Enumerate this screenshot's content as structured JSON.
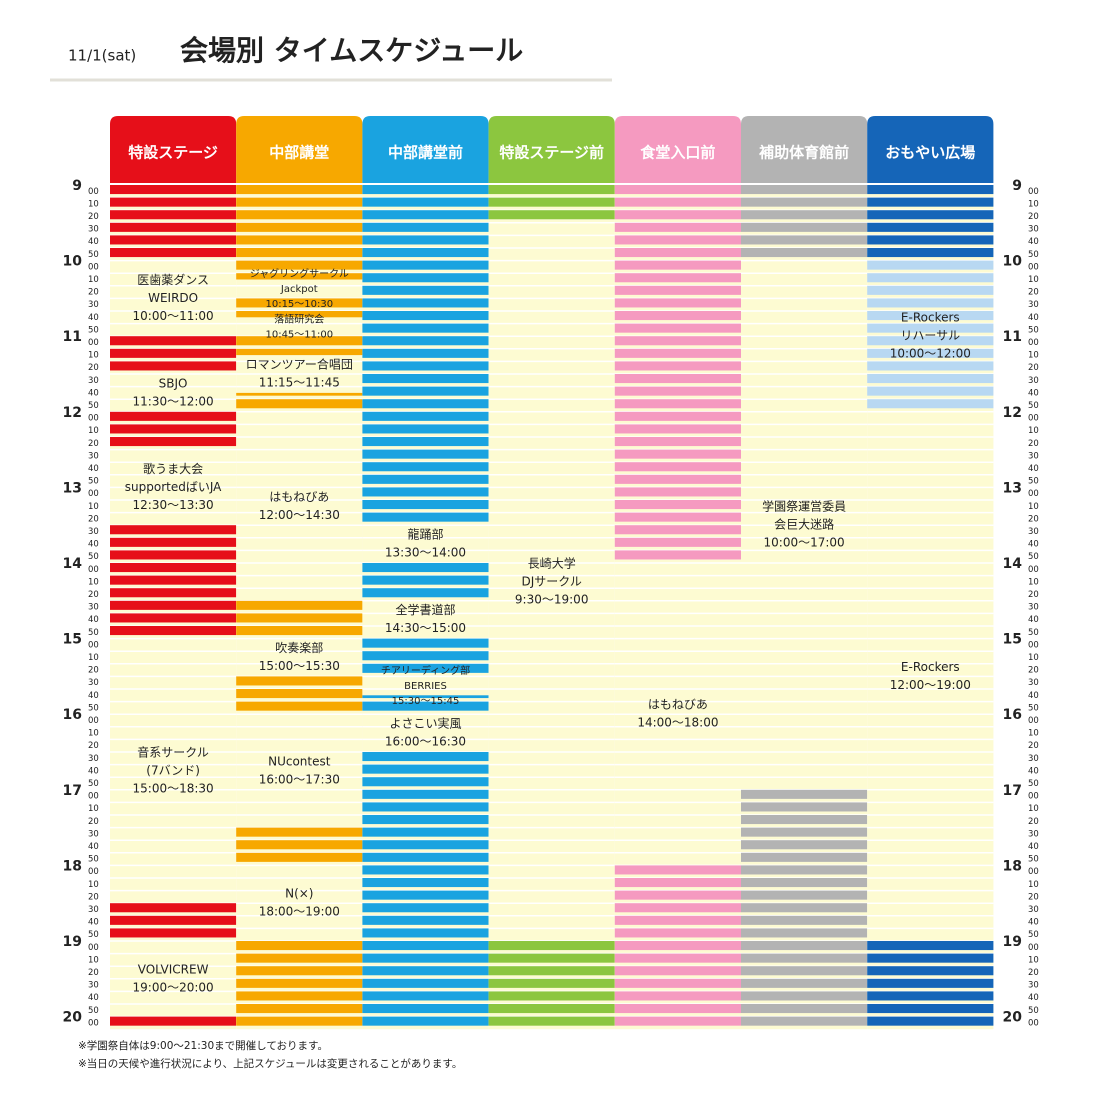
{
  "header": {
    "date": "11/1(sat)",
    "title": "会場別 タイムスケジュール"
  },
  "time_axis": {
    "hours": [
      9,
      10,
      11,
      12,
      13,
      14,
      15,
      16,
      17,
      18,
      19,
      20
    ],
    "minutes": [
      "00",
      "10",
      "20",
      "30",
      "40",
      "50"
    ]
  },
  "venues": [
    {
      "name": "特設ステージ",
      "color": "#e60f19",
      "events": [
        {
          "lines": [
            "医歯薬ダンス",
            "WEIRDO"
          ],
          "time": "10:00～11:00"
        },
        {
          "lines": [
            "SBJO"
          ],
          "time": "11:30～12:00"
        },
        {
          "lines": [
            "歌うま大会",
            "supportedばいJA"
          ],
          "time": "12:30～13:30"
        },
        {
          "lines": [
            "音系サークル",
            "(7バンド)"
          ],
          "time": "15:00～18:30"
        },
        {
          "lines": [
            "VOLVICREW"
          ],
          "time": "19:00～20:00"
        }
      ]
    },
    {
      "name": "中部講堂",
      "color": "#f7a800",
      "events": [
        {
          "lines": [
            "ジャグリングサークル",
            "Jackpot"
          ],
          "time": "10:15～10:30"
        },
        {
          "lines": [
            "落語研究会"
          ],
          "time": "10:45～11:00"
        },
        {
          "lines": [
            "ロマンツアー合唱団"
          ],
          "time": "11:15～11:45"
        },
        {
          "lines": [
            "はもねびあ"
          ],
          "time": "12:00～14:30"
        },
        {
          "lines": [
            "吹奏楽部"
          ],
          "time": "15:00～15:30"
        },
        {
          "lines": [
            "NUcontest"
          ],
          "time": "16:00～17:30"
        },
        {
          "lines": [
            "N(×)"
          ],
          "time": "18:00～19:00"
        }
      ]
    },
    {
      "name": "中部講堂前",
      "color": "#1aa3e0",
      "events": [
        {
          "lines": [
            "龍踊部"
          ],
          "time": "13:30～14:00"
        },
        {
          "lines": [
            "全学書道部"
          ],
          "time": "14:30～15:00"
        },
        {
          "lines": [
            "チアリーディング部",
            "BERRIES"
          ],
          "time": "15:30～15:45"
        },
        {
          "lines": [
            "よさこい実風"
          ],
          "time": "16:00～16:30"
        }
      ]
    },
    {
      "name": "特設ステージ前",
      "color": "#8cc63f",
      "events": [
        {
          "lines": [
            "長崎大学",
            "DJサークル"
          ],
          "time": "9:30～19:00"
        }
      ]
    },
    {
      "name": "食堂入口前",
      "color": "#f59ac0",
      "events": [
        {
          "lines": [
            "はもねびあ"
          ],
          "time": "14:00～18:00"
        }
      ]
    },
    {
      "name": "補助体育館前",
      "color": "#b3b3b3",
      "events": [
        {
          "lines": [
            "学園祭運営委員",
            "会巨大迷路"
          ],
          "time": "10:00～17:00"
        }
      ]
    },
    {
      "name": "おもやい広場",
      "color": "#1565b8",
      "events": [
        {
          "lines": [
            "E-Rockers",
            "リハーサル"
          ],
          "time": "10:00～12:00",
          "color": "#b8d8f2"
        },
        {
          "lines": [
            "E-Rockers"
          ],
          "time": "12:00～19:00"
        }
      ]
    }
  ],
  "notes": [
    "※学園祭自体は9:00～21:30まで開催しております。",
    "※当日の天候や進行状況により、上記スケジュールは変更されることがあります。"
  ]
}
